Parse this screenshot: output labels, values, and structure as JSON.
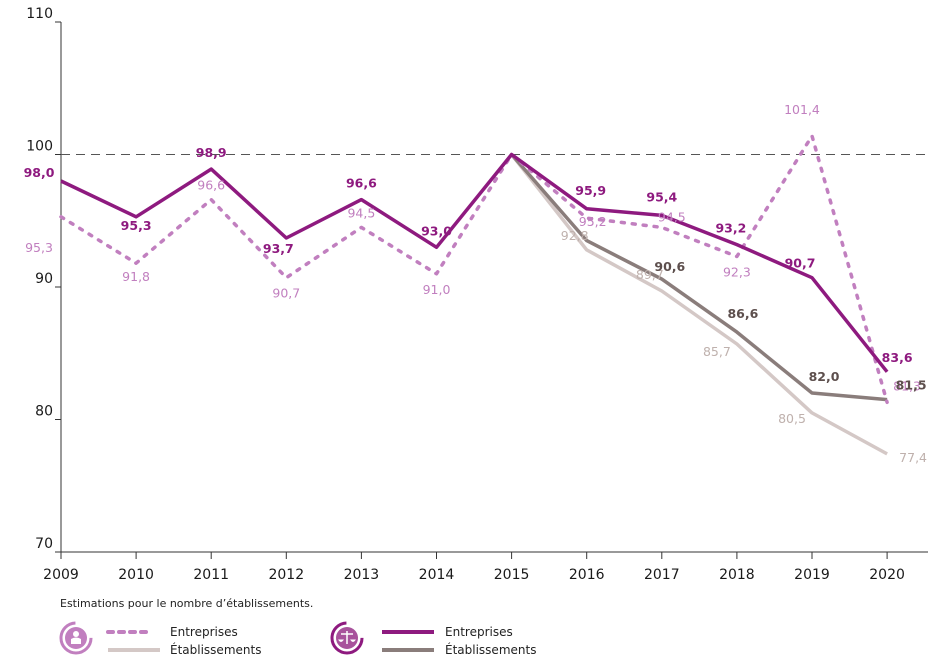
{
  "chart_data": {
    "type": "line",
    "x": [
      "2009",
      "2010",
      "2011",
      "2012",
      "2013",
      "2014",
      "2015",
      "2016",
      "2017",
      "2018",
      "2019",
      "2020"
    ],
    "ylim": [
      70,
      110
    ],
    "yticks": [
      "70",
      "80",
      "90",
      "100",
      "110"
    ],
    "reference_line": 100,
    "series": [
      {
        "group": "public",
        "name": "Entreprises",
        "style": "dotted",
        "color": "#c17fbf",
        "values": [
          95.3,
          91.8,
          96.6,
          90.7,
          94.5,
          91.0,
          100,
          95.2,
          94.5,
          92.3,
          101.4,
          81.3
        ],
        "labels": [
          "95,3",
          "91,8",
          "96,6",
          "90,7",
          "94,5",
          "91,0",
          null,
          "95,2",
          "94,5",
          "92,3",
          "101,4",
          "81,3"
        ]
      },
      {
        "group": "public",
        "name": "Établissements",
        "style": "solid",
        "color": "#d4c8c6",
        "values": [
          null,
          null,
          null,
          null,
          null,
          null,
          100,
          92.8,
          89.7,
          85.7,
          80.5,
          77.4
        ],
        "labels": [
          null,
          null,
          null,
          null,
          null,
          null,
          null,
          "92,8",
          "89,7",
          "85,7",
          "80,5",
          "77,4"
        ]
      },
      {
        "group": "legal",
        "name": "Entreprises",
        "style": "solid",
        "color": "#8e1a7f",
        "values": [
          98.0,
          95.3,
          98.9,
          93.7,
          96.6,
          93.0,
          100,
          95.9,
          95.4,
          93.2,
          90.7,
          83.6
        ],
        "labels": [
          "98,0",
          "95,3",
          "98,9",
          "93,7",
          "96,6",
          "93,0",
          null,
          "95,9",
          "95,4",
          "93,2",
          "90,7",
          "83,6"
        ]
      },
      {
        "group": "legal",
        "name": "Établissements",
        "style": "solid",
        "color": "#8a7d7b",
        "values": [
          null,
          null,
          null,
          null,
          null,
          null,
          100,
          93.5,
          90.6,
          86.6,
          82.0,
          81.5
        ],
        "labels": [
          null,
          null,
          null,
          null,
          null,
          null,
          null,
          null,
          "90,6",
          "86,6",
          "82,0",
          "81,5"
        ]
      }
    ]
  },
  "note": "Estimations pour le nombre d’établissements.",
  "legend": {
    "public": {
      "icon": "person-icon",
      "items": [
        "Entreprises",
        "Établissements"
      ]
    },
    "legal": {
      "icon": "scales-icon",
      "items": [
        "Entreprises",
        "Établissements"
      ]
    }
  }
}
